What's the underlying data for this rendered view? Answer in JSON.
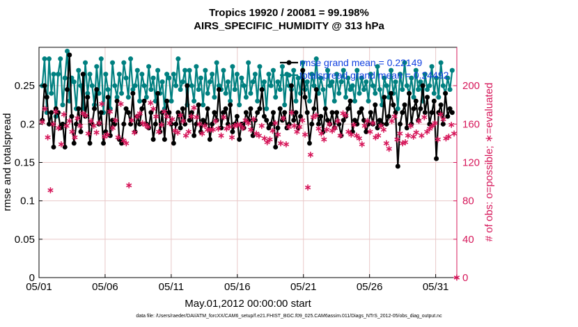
{
  "title_line1": "Tropics 19920 / 20081 = 99.198%",
  "title_line2": "AIRS_SPECIFIC_HUMIDITY @ 313 hPa",
  "xlabel": "May.01,2012 00:00:00 start",
  "footer": "data file: /Users/raeder/DAI/ATM_forcXX/CAM6_setup/f.e21.FHIST_BGC.f09_025.CAM6assim.011/Diags_NTrS_2012-05/obs_diag_output.nc",
  "colors": {
    "rmse": "#000000",
    "spread": "#008080",
    "obs": "#d6175a",
    "legend_text": "#1040e0",
    "grid": "#e8c8c8"
  },
  "chart_data": {
    "type": "line",
    "left_axis": {
      "label": "rmse and totalspread",
      "ylim": [
        0,
        0.3
      ],
      "ticks": [
        0,
        0.05,
        0.1,
        0.15,
        0.2,
        0.25
      ]
    },
    "right_axis": {
      "label": "# of obs: o=possible; ∗=evaluated",
      "ylim": [
        0,
        240
      ],
      "ticks": [
        0,
        40,
        80,
        120,
        160,
        200
      ]
    },
    "xlim": [
      0,
      31.6
    ],
    "x_ticks": [
      {
        "day": 0,
        "label": "05/01"
      },
      {
        "day": 5,
        "label": "05/06"
      },
      {
        "day": 10,
        "label": "05/11"
      },
      {
        "day": 15,
        "label": "05/16"
      },
      {
        "day": 20,
        "label": "05/21"
      },
      {
        "day": 25,
        "label": "05/26"
      },
      {
        "day": 30,
        "label": "05/31"
      }
    ],
    "legend": [
      {
        "name": "rmse grand mean = 0.22149",
        "series": "rmse"
      },
      {
        "name": "totalspread grand mean = 0.24492",
        "series": "spread"
      }
    ],
    "rmse": [
      0.205,
      0.25,
      0.235,
      0.2,
      0.215,
      0.17,
      0.22,
      0.215,
      0.195,
      0.2,
      0.17,
      0.245,
      0.29,
      0.21,
      0.175,
      0.2,
      0.22,
      0.19,
      0.265,
      0.21,
      0.235,
      0.175,
      0.2,
      0.22,
      0.245,
      0.2,
      0.215,
      0.175,
      0.19,
      0.235,
      0.185,
      0.205,
      0.2,
      0.23,
      0.18,
      0.175,
      0.2,
      0.22,
      0.215,
      0.2,
      0.24,
      0.19,
      0.21,
      0.2,
      0.22,
      0.23,
      0.2,
      0.195,
      0.215,
      0.18,
      0.2,
      0.24,
      0.19,
      0.215,
      0.18,
      0.23,
      0.215,
      0.2,
      0.175,
      0.2,
      0.215,
      0.195,
      0.22,
      0.2,
      0.25,
      0.205,
      0.215,
      0.185,
      0.2,
      0.225,
      0.19,
      0.205,
      0.2,
      0.22,
      0.18,
      0.2,
      0.215,
      0.205,
      0.245,
      0.195,
      0.215,
      0.22,
      0.2,
      0.225,
      0.19,
      0.2,
      0.21,
      0.18,
      0.2,
      0.195,
      0.215,
      0.205,
      0.22,
      0.185,
      0.205,
      0.215,
      0.22,
      0.245,
      0.21,
      0.205,
      0.195,
      0.2,
      0.215,
      0.17,
      0.195,
      0.22,
      0.205,
      0.215,
      0.195,
      0.2,
      0.25,
      0.205,
      0.215,
      0.195,
      0.21,
      0.27,
      0.235,
      0.215,
      0.175,
      0.2,
      0.22,
      0.245,
      0.2,
      0.21,
      0.19,
      0.22,
      0.205,
      0.2,
      0.215,
      0.195,
      0.215,
      0.2,
      0.185,
      0.205,
      0.21,
      0.22,
      0.23,
      0.19,
      0.205,
      0.2,
      0.215,
      0.22,
      0.205,
      0.19,
      0.2,
      0.215,
      0.2,
      0.225,
      0.195,
      0.205,
      0.2,
      0.235,
      0.2,
      0.21,
      0.24,
      0.225,
      0.215,
      0.145,
      0.2,
      0.215,
      0.225,
      0.195,
      0.24,
      0.2,
      0.22,
      0.23,
      0.205,
      0.22,
      0.25,
      0.215,
      0.235,
      0.2,
      0.215,
      0.23,
      0.155,
      0.215,
      0.225,
      0.2,
      0.24,
      0.21,
      0.22,
      0.215
    ],
    "totalspread": [
      0.25,
      0.285,
      0.215,
      0.285,
      0.24,
      0.265,
      0.21,
      0.265,
      0.285,
      0.225,
      0.26,
      0.295,
      0.23,
      0.26,
      0.255,
      0.22,
      0.27,
      0.25,
      0.22,
      0.28,
      0.24,
      0.265,
      0.25,
      0.225,
      0.275,
      0.24,
      0.285,
      0.215,
      0.265,
      0.245,
      0.22,
      0.28,
      0.25,
      0.235,
      0.265,
      0.24,
      0.28,
      0.26,
      0.235,
      0.285,
      0.245,
      0.25,
      0.27,
      0.23,
      0.265,
      0.25,
      0.235,
      0.275,
      0.245,
      0.26,
      0.23,
      0.27,
      0.24,
      0.255,
      0.22,
      0.265,
      0.26,
      0.23,
      0.265,
      0.25,
      0.285,
      0.245,
      0.255,
      0.27,
      0.225,
      0.27,
      0.25,
      0.23,
      0.275,
      0.245,
      0.26,
      0.225,
      0.27,
      0.24,
      0.255,
      0.265,
      0.235,
      0.28,
      0.25,
      0.245,
      0.27,
      0.24,
      0.255,
      0.23,
      0.275,
      0.245,
      0.265,
      0.225,
      0.26,
      0.25,
      0.235,
      0.28,
      0.24,
      0.255,
      0.265,
      0.23,
      0.275,
      0.245,
      0.255,
      0.22,
      0.265,
      0.25,
      0.27,
      0.235,
      0.255,
      0.245,
      0.275,
      0.225,
      0.265,
      0.25,
      0.245,
      0.27,
      0.23,
      0.26,
      0.24,
      0.28,
      0.245,
      0.255,
      0.23,
      0.265,
      0.25,
      0.285,
      0.24,
      0.26,
      0.245,
      0.22,
      0.27,
      0.25,
      0.255,
      0.23,
      0.265,
      0.24,
      0.255,
      0.27,
      0.235,
      0.26,
      0.245,
      0.25,
      0.23,
      0.27,
      0.24,
      0.26,
      0.245,
      0.255,
      0.23,
      0.265,
      0.25,
      0.24,
      0.275,
      0.245,
      0.225,
      0.26,
      0.25,
      0.235,
      0.27,
      0.24,
      0.255,
      0.22,
      0.265,
      0.245,
      0.28,
      0.25,
      0.24,
      0.26,
      0.235,
      0.27,
      0.245,
      0.255,
      0.23,
      0.265,
      0.245,
      0.25,
      0.275,
      0.24,
      0.26,
      0.235,
      0.28,
      0.25,
      0.24,
      0.26,
      0.245,
      0.27
    ],
    "obs_evaluated": [
      162,
      176,
      146,
      91,
      160,
      173,
      156,
      139,
      170,
      158,
      163,
      152,
      146,
      166,
      158,
      171,
      169,
      150,
      163,
      158,
      151,
      161,
      181,
      147,
      149,
      173,
      156,
      164,
      146,
      181,
      143,
      140,
      96,
      164,
      151,
      168,
      171,
      161,
      159,
      157,
      182,
      176,
      168,
      152,
      159,
      173,
      168,
      161,
      165,
      153,
      151,
      169,
      163,
      148,
      152,
      168,
      177,
      167,
      160,
      150,
      158,
      154,
      154,
      154,
      163,
      155,
      148,
      167,
      155,
      157,
      146,
      158,
      159,
      159,
      156,
      164,
      161,
      154,
      165,
      150,
      148,
      158,
      145,
      141,
      144,
      153,
      161,
      149,
      140,
      166,
      139,
      157,
      172,
      158,
      152,
      157,
      164,
      149,
      94,
      128,
      167,
      169,
      155,
      150,
      144,
      154,
      160,
      153,
      156,
      163,
      148,
      171,
      169,
      152,
      149,
      159,
      148,
      145,
      139,
      158,
      163,
      152,
      161,
      146,
      148,
      158,
      154,
      140,
      134,
      163,
      168,
      144,
      150,
      140,
      141,
      148,
      158,
      147,
      151,
      163,
      148,
      167,
      152,
      155,
      158,
      161,
      144,
      170,
      165,
      145,
      147,
      159,
      150,
      0
    ]
  }
}
